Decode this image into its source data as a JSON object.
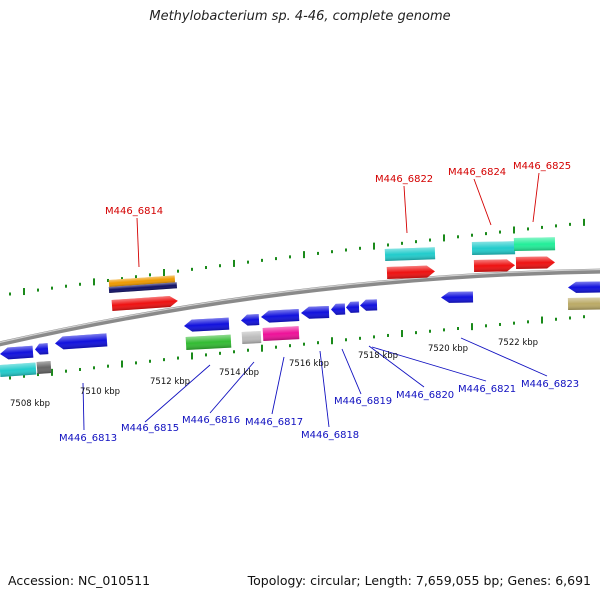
{
  "title": "Methylobacterium sp. 4-46, complete genome",
  "footer": {
    "accession": "Accession: NC_010511",
    "summary": "Topology: circular; Length: 7,659,055 bp; Genes: 6,691"
  },
  "colors": {
    "backbone": "#888888",
    "tick": "#1a8a1a",
    "label_top": "#d40000",
    "label_bottom": "#1010c0",
    "gene_red": "#ee1111",
    "gene_blue": "#1111dd",
    "gene_cyan": "#22cccc",
    "gene_orange": "#ee9900",
    "gene_navy": "#111166",
    "gene_green": "#33bb33",
    "gene_gray": "#bbbbbb",
    "gene_dark_gray": "#666666",
    "gene_magenta": "#ee1199",
    "gene_spring": "#22ee99",
    "gene_khaki": "#bbaa66"
  },
  "tick_labels": [
    "7508 kbp",
    "7510 kbp",
    "7512 kbp",
    "7514 kbp",
    "7516 kbp",
    "7518 kbp",
    "7520 kbp",
    "7522 kbp"
  ],
  "gene_labels_top": [
    "M446_6814",
    "M446_6822",
    "M446_6824",
    "M446_6825"
  ],
  "gene_labels_bottom": [
    "M446_6813",
    "M446_6815",
    "M446_6816",
    "M446_6817",
    "M446_6818",
    "M446_6819",
    "M446_6820",
    "M446_6821",
    "M446_6823"
  ]
}
